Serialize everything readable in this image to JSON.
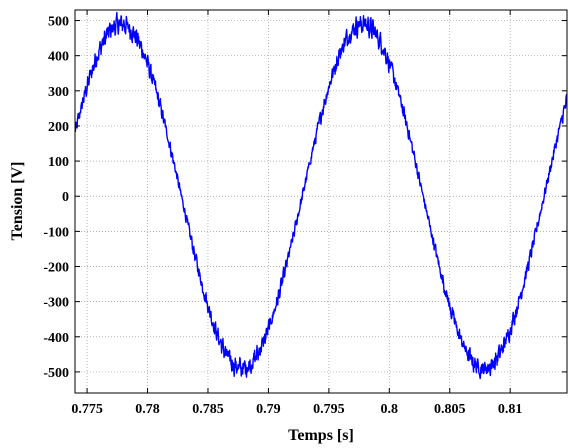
{
  "chart_data": {
    "type": "line",
    "title": "",
    "xlabel": "Temps [s]",
    "ylabel": "Tension [V]",
    "xlim": [
      0.774,
      0.8147
    ],
    "ylim": [
      -560,
      530
    ],
    "xticks": [
      0.775,
      0.78,
      0.785,
      0.79,
      0.795,
      0.8,
      0.805,
      0.81
    ],
    "xtick_labels": [
      "0.775",
      "0.78",
      "0.785",
      "0.79",
      "0.795",
      "0.8",
      "0.805",
      "0.81"
    ],
    "yticks": [
      500,
      400,
      300,
      200,
      100,
      0,
      -100,
      -200,
      -300,
      -400,
      -500
    ],
    "ytick_labels": [
      "500",
      "400",
      "300",
      "200",
      "100",
      "0",
      "-100",
      "-200",
      "-300",
      "-400",
      "-500"
    ],
    "grid": true,
    "legend": "none",
    "series": [
      {
        "color": "#0000ff",
        "signal": {
          "kind": "noisy-sine",
          "amplitude": 490,
          "frequency_hz": 50,
          "peak_time_s": 0.7778,
          "ripple_amplitude_v": 22,
          "x_start": 0.774,
          "x_end": 0.8147
        }
      }
    ]
  }
}
